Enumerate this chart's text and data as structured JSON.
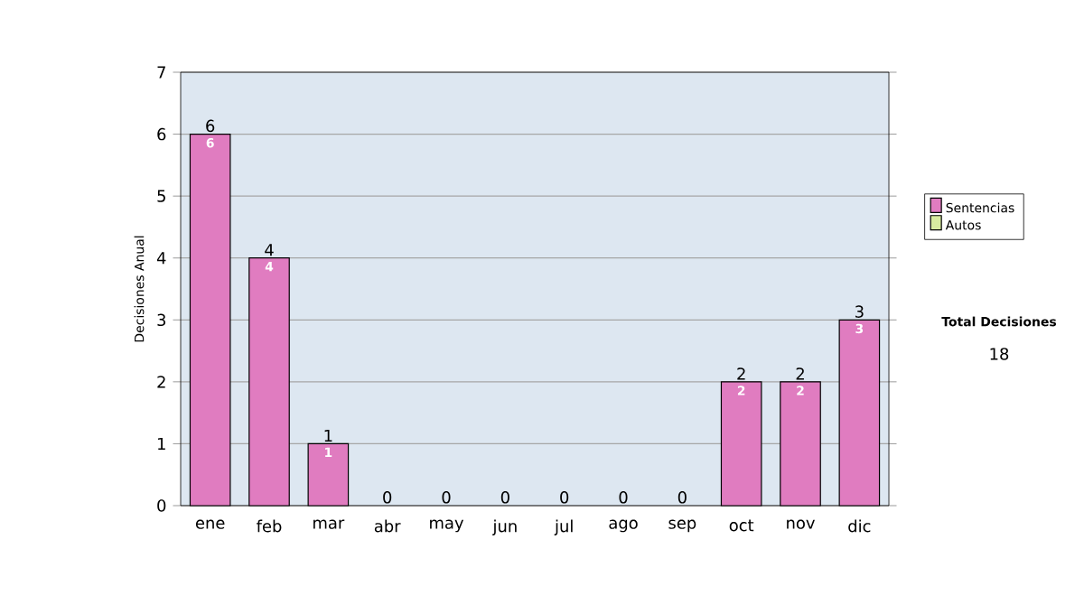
{
  "chart_data": {
    "type": "bar",
    "stacked": true,
    "categories": [
      "ene",
      "feb",
      "mar",
      "abr",
      "may",
      "jun",
      "jul",
      "ago",
      "sep",
      "oct",
      "nov",
      "dic"
    ],
    "series": [
      {
        "name": "Sentencias",
        "color": "#e07cc0",
        "values": [
          6,
          4,
          1,
          0,
          0,
          0,
          0,
          0,
          0,
          2,
          2,
          3
        ],
        "value_labels": [
          "6",
          "4",
          "1",
          null,
          null,
          null,
          null,
          null,
          null,
          "2",
          "2",
          "3"
        ]
      },
      {
        "name": "Autos",
        "color": "#d8eca0",
        "values": [
          0,
          0,
          0,
          0,
          0,
          0,
          0,
          0,
          0,
          0,
          0,
          0
        ]
      }
    ],
    "totals": [
      "6",
      "4",
      "1",
      "0",
      "0",
      "0",
      "0",
      "0",
      "0",
      "2",
      "2",
      "3"
    ],
    "ylabel": "Decisiones Anual",
    "ylim": [
      0,
      7
    ],
    "yticks": [
      0,
      1,
      2,
      3,
      4,
      5,
      6,
      7
    ],
    "grid": "y",
    "legend": "right",
    "annotations": [
      "Total Decisiones",
      "18"
    ]
  }
}
